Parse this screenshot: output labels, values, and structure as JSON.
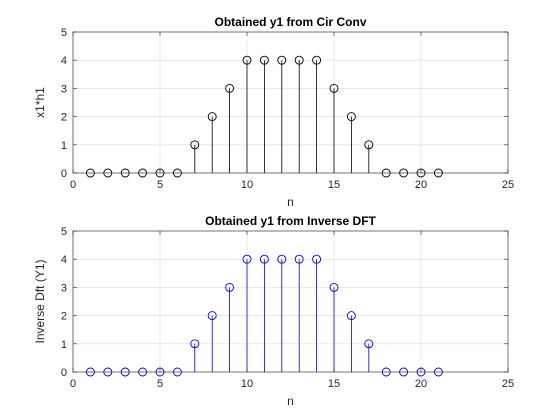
{
  "window": {
    "width": 560,
    "height": 420
  },
  "chart_data": [
    {
      "type": "stem",
      "title": "Obtained y1 from Cir Conv",
      "xlabel": "n",
      "ylabel": "x1*h1",
      "xlim": [
        0,
        25
      ],
      "ylim": [
        0,
        5
      ],
      "xticks": [
        0,
        5,
        10,
        15,
        20,
        25
      ],
      "yticks": [
        0,
        1,
        2,
        3,
        4,
        5
      ],
      "grid": true,
      "color": "#000000",
      "marker": "circle",
      "series": [
        {
          "x": [
            1,
            2,
            3,
            4,
            5,
            6,
            7,
            8,
            9,
            10,
            11,
            12,
            13,
            14,
            15,
            16,
            17,
            18,
            19,
            20,
            21
          ],
          "values": [
            0,
            0,
            0,
            0,
            0,
            0,
            1,
            2,
            3,
            4,
            4,
            4,
            4,
            4,
            3,
            2,
            1,
            0,
            0,
            0,
            0
          ]
        }
      ]
    },
    {
      "type": "stem",
      "title": "Obtained y1 from Inverse DFT",
      "xlabel": "n",
      "ylabel": "Inverse Dft (Y1)",
      "xlim": [
        0,
        25
      ],
      "ylim": [
        0,
        5
      ],
      "xticks": [
        0,
        5,
        10,
        15,
        20,
        25
      ],
      "yticks": [
        0,
        1,
        2,
        3,
        4,
        5
      ],
      "grid": true,
      "color": "#0000ff",
      "marker": "circle",
      "series": [
        {
          "x": [
            1,
            2,
            3,
            4,
            5,
            6,
            7,
            8,
            9,
            10,
            11,
            12,
            13,
            14,
            15,
            16,
            17,
            18,
            19,
            20,
            21
          ],
          "values": [
            0,
            0,
            0,
            0,
            0,
            0,
            1,
            2,
            3,
            4,
            4,
            4,
            4,
            4,
            3,
            2,
            1,
            0,
            0,
            0,
            0
          ]
        }
      ]
    }
  ]
}
